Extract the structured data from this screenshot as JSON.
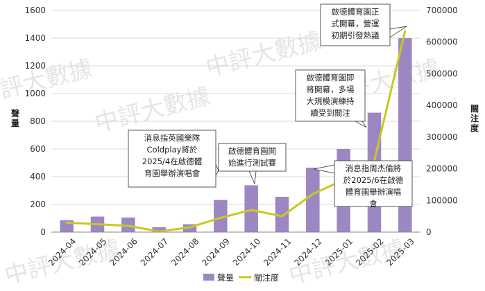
{
  "chart_data": {
    "type": "bar",
    "categories": [
      "2024-04",
      "2024-05",
      "2024-06",
      "2024-07",
      "2024-08",
      "2024-09",
      "2024-10",
      "2024-11",
      "2024-12",
      "2025-01",
      "2025-02",
      "2025-03"
    ],
    "series": [
      {
        "name": "聲量",
        "type": "bar",
        "axis": "left",
        "values": [
          85,
          112,
          105,
          35,
          57,
          232,
          338,
          255,
          465,
          600,
          862,
          1400
        ]
      },
      {
        "name": "關注度",
        "type": "line",
        "axis": "right",
        "values": [
          30000,
          25000,
          20000,
          2000,
          15000,
          45000,
          70000,
          50000,
          120000,
          165000,
          225000,
          635000
        ]
      }
    ],
    "ylabel": "聲量",
    "y2label": "關注度",
    "ylim": [
      0,
      1600
    ],
    "y2lim": [
      0,
      700000
    ],
    "yticks": [
      0,
      200,
      400,
      600,
      800,
      1000,
      1200,
      1400,
      1600
    ],
    "y2ticks": [
      0,
      100000,
      200000,
      300000,
      400000,
      500000,
      600000,
      700000
    ],
    "grid": true,
    "legend": "bottom",
    "colors": {
      "bar": "#9d87c3",
      "line": "#c8c822"
    },
    "annotations": [
      {
        "target": "2024-09",
        "lines": [
          "消息指英國樂隊",
          "Coldplay將於",
          "2025/4在啟德體",
          "育園舉辦演唱會"
        ]
      },
      {
        "target": "2024-10",
        "lines": [
          "啟德體育園開",
          "始進行測試賽"
        ]
      },
      {
        "target": "2024-12",
        "lines": [
          "消息指周杰倫將",
          "於2025/6在啟德",
          "體育園舉辦演唱",
          "會"
        ]
      },
      {
        "target": "2025-02",
        "lines": [
          "啟德體育園即",
          "將開幕，多場",
          "大規模演練持",
          "續受到關注"
        ]
      },
      {
        "target": "2025-03",
        "lines": [
          "啟德體育園正",
          "式開幕，營運",
          "初期引發熱議"
        ]
      }
    ]
  },
  "watermark": "中評大數據"
}
